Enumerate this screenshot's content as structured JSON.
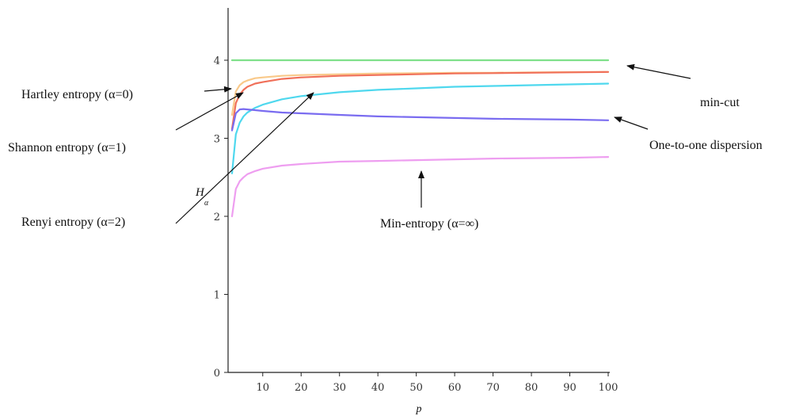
{
  "chart_data": {
    "type": "line",
    "xlabel": "p",
    "ylabel": "H",
    "ylabel_sub": "α",
    "xlim": [
      2,
      100
    ],
    "ylim": [
      0,
      4.6
    ],
    "xticks": [
      10,
      20,
      30,
      40,
      50,
      60,
      70,
      80,
      90,
      100
    ],
    "yticks": [
      0,
      1,
      2,
      3,
      4
    ],
    "grid": false,
    "series": [
      {
        "name": "min-cut",
        "color": "#7fe08a",
        "x": [
          2,
          100
        ],
        "y": [
          4.0,
          4.0
        ]
      },
      {
        "name": "Hartley entropy (α=0)",
        "color": "#f9c98a",
        "x": [
          2,
          3,
          4,
          5,
          6,
          8,
          10,
          15,
          20,
          30,
          40,
          50,
          60,
          70,
          80,
          90,
          100
        ],
        "y": [
          3.3,
          3.6,
          3.68,
          3.72,
          3.74,
          3.77,
          3.78,
          3.8,
          3.81,
          3.82,
          3.83,
          3.835,
          3.84,
          3.84,
          3.845,
          3.848,
          3.85
        ]
      },
      {
        "name": "Shannon entropy (α=1)",
        "color": "#f0705a",
        "x": [
          2,
          3,
          4,
          5,
          6,
          8,
          10,
          15,
          20,
          30,
          40,
          50,
          60,
          70,
          80,
          90,
          100
        ],
        "y": [
          3.12,
          3.45,
          3.56,
          3.62,
          3.66,
          3.7,
          3.72,
          3.76,
          3.78,
          3.8,
          3.81,
          3.82,
          3.83,
          3.835,
          3.84,
          3.845,
          3.85
        ]
      },
      {
        "name": "Renyi entropy (α=2)",
        "color": "#4fd8ee",
        "x": [
          2,
          3,
          4,
          5,
          6,
          8,
          10,
          15,
          20,
          30,
          40,
          50,
          60,
          70,
          80,
          90,
          100
        ],
        "y": [
          2.55,
          3.05,
          3.2,
          3.28,
          3.33,
          3.39,
          3.43,
          3.5,
          3.54,
          3.59,
          3.62,
          3.64,
          3.66,
          3.67,
          3.68,
          3.69,
          3.7
        ]
      },
      {
        "name": "One-to-one dispersion",
        "color": "#7a6cf0",
        "x": [
          2,
          3,
          4,
          5,
          6,
          8,
          10,
          15,
          20,
          30,
          40,
          50,
          60,
          70,
          80,
          90,
          100
        ],
        "y": [
          3.1,
          3.32,
          3.37,
          3.375,
          3.37,
          3.36,
          3.35,
          3.33,
          3.32,
          3.3,
          3.28,
          3.27,
          3.26,
          3.25,
          3.245,
          3.24,
          3.23
        ]
      },
      {
        "name": "Min-entropy (α=∞)",
        "color": "#ee9ef0",
        "x": [
          2,
          3,
          4,
          5,
          6,
          8,
          10,
          15,
          20,
          30,
          40,
          50,
          60,
          70,
          80,
          90,
          100
        ],
        "y": [
          2.0,
          2.35,
          2.45,
          2.5,
          2.54,
          2.58,
          2.61,
          2.65,
          2.67,
          2.7,
          2.71,
          2.72,
          2.73,
          2.74,
          2.745,
          2.75,
          2.76
        ]
      }
    ],
    "annotations": [
      {
        "text": "Hartley entropy (α=0)"
      },
      {
        "text": "Shannon entropy (α=1)"
      },
      {
        "text": "Renyi entropy (α=2)"
      },
      {
        "text": "Min-entropy  (α=∞)"
      },
      {
        "text": "min-cut"
      },
      {
        "text": "One-to-one dispersion"
      }
    ]
  }
}
